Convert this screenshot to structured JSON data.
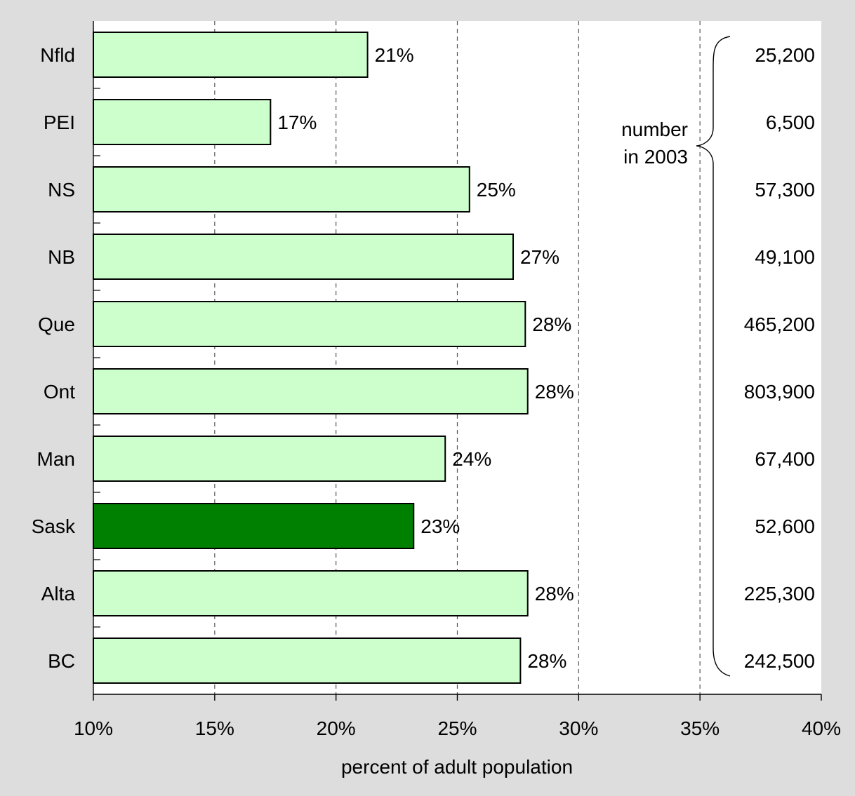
{
  "chart_data": {
    "type": "bar",
    "orientation": "horizontal",
    "categories": [
      "Nfld",
      "PEI",
      "NS",
      "NB",
      "Que",
      "Ont",
      "Man",
      "Sask",
      "Alta",
      "BC"
    ],
    "values": [
      21.3,
      17.3,
      25.5,
      27.3,
      27.8,
      27.9,
      24.5,
      23.2,
      27.9,
      27.6
    ],
    "value_labels": [
      "21%",
      "17%",
      "25%",
      "27%",
      "28%",
      "28%",
      "24%",
      "23%",
      "28%",
      "28%"
    ],
    "highlight_category": "Sask",
    "counts": [
      "25,200",
      "6,500",
      "57,300",
      "49,100",
      "465,200",
      "803,900",
      "67,400",
      "52,600",
      "225,300",
      "242,500"
    ],
    "counts_label_lines": [
      "number",
      "in 2003"
    ],
    "xlabel": "percent of adult population",
    "xlim": [
      10,
      40
    ],
    "x_ticks": [
      "10%",
      "15%",
      "20%",
      "25%",
      "30%",
      "35%",
      "40%"
    ],
    "grid": "vertical dashed",
    "colors": {
      "page_background": "#dddddd",
      "plot_background": "#ffffff",
      "bar_fill": "#ccffcc",
      "highlight_fill": "#008000",
      "outline": "#000000",
      "grid": "#555555"
    }
  }
}
